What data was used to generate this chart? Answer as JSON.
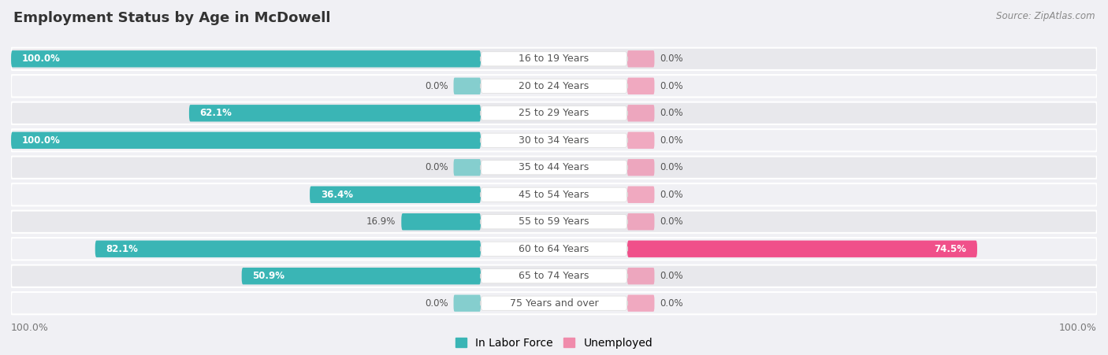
{
  "title": "Employment Status by Age in McDowell",
  "source": "Source: ZipAtlas.com",
  "categories": [
    "16 to 19 Years",
    "20 to 24 Years",
    "25 to 29 Years",
    "30 to 34 Years",
    "35 to 44 Years",
    "45 to 54 Years",
    "55 to 59 Years",
    "60 to 64 Years",
    "65 to 74 Years",
    "75 Years and over"
  ],
  "labor_force": [
    100.0,
    0.0,
    62.1,
    100.0,
    0.0,
    36.4,
    16.9,
    82.1,
    50.9,
    0.0
  ],
  "unemployed": [
    0.0,
    0.0,
    0.0,
    0.0,
    0.0,
    0.0,
    0.0,
    74.5,
    0.0,
    0.0
  ],
  "labor_force_color": "#3ab5b5",
  "labor_force_color_light": "#85cece",
  "unemployed_color": "#f08bab",
  "unemployed_color_hot": "#f0508a",
  "row_bg_dark": "#e8e8ec",
  "row_bg_light": "#f0f0f4",
  "fig_bg": "#f0f0f4",
  "label_color_white": "#ffffff",
  "label_color_dark": "#555555",
  "title_color": "#333333",
  "source_color": "#888888",
  "axis_label_color": "#777777",
  "legend_lf": "In Labor Force",
  "legend_un": "Unemployed",
  "max_val": 100.0,
  "title_fontsize": 13,
  "source_fontsize": 8.5,
  "bar_label_fontsize": 8.5,
  "cat_label_fontsize": 9,
  "axis_label_fontsize": 9,
  "legend_fontsize": 10
}
